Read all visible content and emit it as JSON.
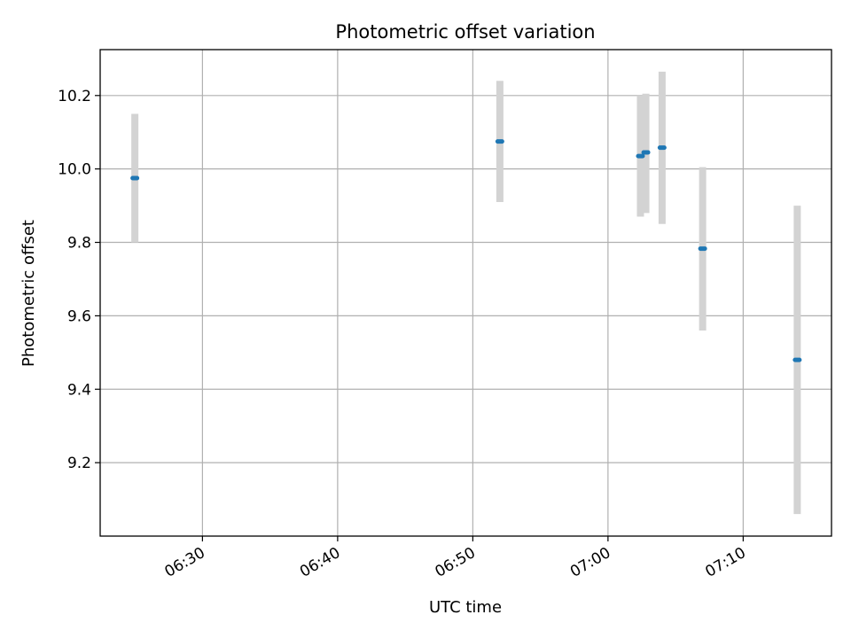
{
  "chart_data": {
    "type": "scatter",
    "title": "Photometric offset variation",
    "xlabel": "UTC time",
    "ylabel": "Photometric offset",
    "x_unit": "UTC time (HH:MM)",
    "xlim": [
      "06:22:26",
      "07:16:32"
    ],
    "ylim": [
      9.0,
      10.325
    ],
    "x_ticks": [
      "06:30",
      "06:40",
      "06:50",
      "07:00",
      "07:10"
    ],
    "y_ticks": [
      "9.2",
      "9.4",
      "9.6",
      "9.8",
      "10.0",
      "10.2"
    ],
    "y_tick_values": [
      9.2,
      9.4,
      9.6,
      9.8,
      10.0,
      10.2
    ],
    "x_tick_rotation_deg": 30,
    "grid": true,
    "colors": {
      "marker": "#1f77b4",
      "errorbar": "#d3d3d3",
      "grid": "#b0b0b0"
    },
    "series": [
      {
        "points": [
          {
            "x": "06:25:00",
            "y": 9.975,
            "ymin": 9.8,
            "ymax": 10.15
          },
          {
            "x": "06:52:00",
            "y": 10.075,
            "ymin": 9.91,
            "ymax": 10.24
          },
          {
            "x": "07:02:24",
            "y": 10.035,
            "ymin": 9.87,
            "ymax": 10.2
          },
          {
            "x": "07:02:48",
            "y": 10.045,
            "ymin": 9.88,
            "ymax": 10.205
          },
          {
            "x": "07:04:00",
            "y": 10.058,
            "ymin": 9.85,
            "ymax": 10.265
          },
          {
            "x": "07:07:00",
            "y": 9.783,
            "ymin": 9.56,
            "ymax": 10.005
          },
          {
            "x": "07:14:00",
            "y": 9.48,
            "ymin": 9.06,
            "ymax": 9.9
          }
        ]
      }
    ]
  }
}
